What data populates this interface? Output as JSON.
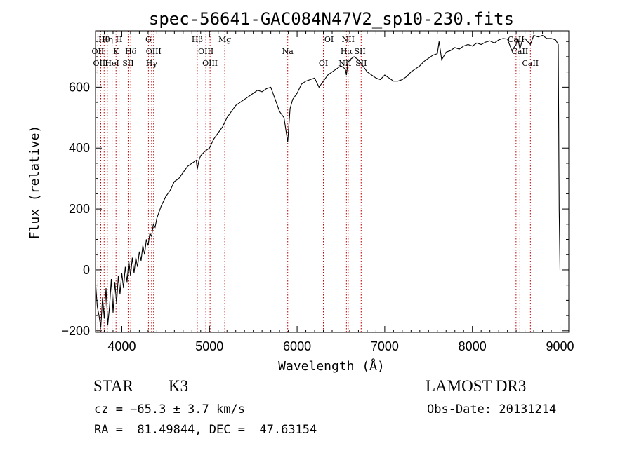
{
  "chart_data": {
    "type": "line",
    "title": "spec-56641-GAC084N47V2_sp10-230.fits",
    "xlabel": "Wavelength (Å)",
    "ylabel": "Flux (relative)",
    "xlim": [
      3700,
      9100
    ],
    "ylim": [
      -205,
      785
    ],
    "x_ticks": [
      4000,
      5000,
      6000,
      7000,
      8000,
      9000
    ],
    "y_ticks": [
      -200,
      0,
      200,
      400,
      600
    ],
    "series": [
      {
        "name": "flux",
        "x": [
          3700,
          3720,
          3740,
          3760,
          3780,
          3800,
          3820,
          3840,
          3860,
          3880,
          3900,
          3920,
          3940,
          3960,
          3980,
          4000,
          4020,
          4040,
          4060,
          4080,
          4100,
          4120,
          4140,
          4160,
          4180,
          4200,
          4220,
          4240,
          4260,
          4280,
          4300,
          4320,
          4340,
          4360,
          4380,
          4400,
          4450,
          4500,
          4550,
          4600,
          4650,
          4700,
          4750,
          4800,
          4850,
          4861,
          4880,
          4900,
          4950,
          5000,
          5050,
          5100,
          5150,
          5200,
          5250,
          5300,
          5350,
          5400,
          5450,
          5500,
          5550,
          5600,
          5650,
          5700,
          5750,
          5800,
          5850,
          5893,
          5920,
          5950,
          6000,
          6050,
          6100,
          6150,
          6200,
          6250,
          6300,
          6350,
          6400,
          6450,
          6500,
          6550,
          6563,
          6580,
          6600,
          6650,
          6700,
          6750,
          6800,
          6850,
          6900,
          6950,
          7000,
          7050,
          7100,
          7150,
          7200,
          7250,
          7300,
          7350,
          7400,
          7450,
          7500,
          7550,
          7600,
          7620,
          7650,
          7700,
          7750,
          7800,
          7850,
          7900,
          7950,
          8000,
          8050,
          8100,
          8150,
          8200,
          8250,
          8300,
          8350,
          8400,
          8450,
          8498,
          8520,
          8542,
          8570,
          8600,
          8662,
          8700,
          8750,
          8800,
          8850,
          8900,
          8950,
          8980,
          8990,
          9000
        ],
        "y": [
          -40,
          -120,
          -150,
          -190,
          -90,
          -160,
          -60,
          -180,
          -120,
          -30,
          -140,
          -40,
          -110,
          -20,
          -80,
          -10,
          -60,
          10,
          -40,
          30,
          -20,
          40,
          -10,
          40,
          10,
          60,
          30,
          80,
          50,
          100,
          80,
          120,
          110,
          150,
          140,
          170,
          210,
          240,
          260,
          290,
          300,
          320,
          340,
          350,
          360,
          330,
          360,
          375,
          390,
          400,
          430,
          450,
          470,
          500,
          520,
          540,
          550,
          560,
          570,
          580,
          590,
          585,
          595,
          600,
          560,
          520,
          500,
          420,
          530,
          560,
          580,
          610,
          620,
          625,
          630,
          600,
          620,
          640,
          650,
          660,
          670,
          660,
          640,
          680,
          690,
          700,
          690,
          670,
          650,
          640,
          630,
          625,
          640,
          630,
          620,
          620,
          625,
          635,
          650,
          660,
          670,
          685,
          695,
          705,
          710,
          750,
          690,
          715,
          720,
          730,
          725,
          735,
          740,
          735,
          745,
          740,
          748,
          752,
          745,
          755,
          760,
          758,
          720,
          740,
          760,
          725,
          755,
          760,
          740,
          770,
          765,
          770,
          760,
          760,
          755,
          740,
          200,
          0
        ]
      }
    ],
    "lines": [
      {
        "name": "Hθ",
        "wave": 3798
      },
      {
        "name": "OII",
        "wave": 3727
      },
      {
        "name": "OIII",
        "wave": 3760
      },
      {
        "name": "Hη",
        "wave": 3835
      },
      {
        "name": "K",
        "wave": 3934
      },
      {
        "name": "HeI",
        "wave": 3889
      },
      {
        "name": "H",
        "wave": 3969
      },
      {
        "name": "Hδ",
        "wave": 4102
      },
      {
        "name": "SII",
        "wave": 4072
      },
      {
        "name": "G",
        "wave": 4304
      },
      {
        "name": "OIII",
        "wave": 4363
      },
      {
        "name": "Hγ",
        "wave": 4340
      },
      {
        "name": "Hβ",
        "wave": 4861
      },
      {
        "name": "OIII",
        "wave": 4959
      },
      {
        "name": "OIII",
        "wave": 5007
      },
      {
        "name": "Mg",
        "wave": 5175
      },
      {
        "name": "Na",
        "wave": 5893
      },
      {
        "name": "OI",
        "wave": 6300
      },
      {
        "name": "OI",
        "wave": 6364
      },
      {
        "name": "Hα",
        "wave": 6563
      },
      {
        "name": "NII",
        "wave": 6548
      },
      {
        "name": "NII",
        "wave": 6583
      },
      {
        "name": "SII",
        "wave": 6717
      },
      {
        "name": "SII",
        "wave": 6731
      },
      {
        "name": "CaII",
        "wave": 8498
      },
      {
        "name": "CaII",
        "wave": 8542
      },
      {
        "name": "CaII",
        "wave": 8662
      }
    ]
  },
  "info": {
    "class": "STAR",
    "subclass": "K3",
    "survey": "LAMOST DR3",
    "cz": "cz = −65.3 ± 3.7 km/s",
    "obs_date": "Obs-Date: 20131214",
    "coords": "RA =  81.49844, DEC =  47.63154"
  }
}
